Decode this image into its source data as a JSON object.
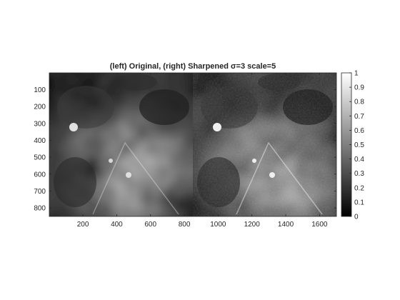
{
  "chart_data": {
    "type": "heatmap",
    "title": "(left) Original, (right) Sharpened σ=3 scale=5",
    "xlabel": "",
    "ylabel": "",
    "xlim": [
      1,
      1700
    ],
    "ylim": [
      1,
      850
    ],
    "y_reversed": true,
    "grid": false,
    "colormap": "gray",
    "panels": [
      "Original",
      "Sharpened"
    ],
    "panel_boundary_x": 850,
    "sharpen": {
      "sigma": 3,
      "scale": 5
    },
    "x_ticks": [
      200,
      400,
      600,
      800,
      1000,
      1200,
      1400,
      1600
    ],
    "y_ticks": [
      100,
      200,
      300,
      400,
      500,
      600,
      700,
      800
    ],
    "colorbar": {
      "location": "right",
      "range": [
        0,
        1
      ],
      "ticks": [
        0,
        0.1,
        0.2,
        0.3,
        0.4,
        0.5,
        0.6,
        0.7,
        0.8,
        0.9,
        1
      ],
      "tick_labels": [
        "0",
        "0.1",
        "0.2",
        "0.3",
        "0.4",
        "0.5",
        "0.6",
        "0.7",
        "0.8",
        "0.9",
        "1"
      ]
    }
  }
}
